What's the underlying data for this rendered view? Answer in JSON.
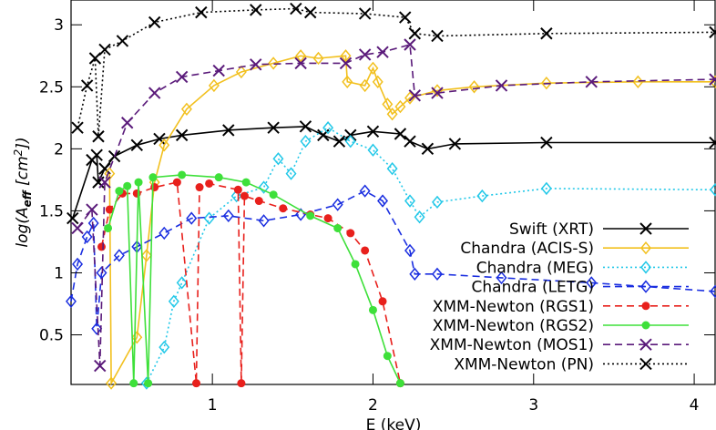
{
  "chart_data": {
    "type": "line",
    "xlabel": "E (keV)",
    "ylabel_parts": [
      "log(A",
      "eff",
      " [cm",
      "2",
      "])"
    ],
    "xlim": [
      0.12,
      4.13
    ],
    "ylim": [
      0.1,
      3.2
    ],
    "xticks": [
      1,
      2,
      3,
      4
    ],
    "yticks": [
      0.5,
      1.0,
      1.5,
      2.0,
      2.5,
      3.0
    ],
    "series": [
      {
        "name": "Swift (XRT)",
        "color": "#000000",
        "dash": "none",
        "marker": "x",
        "x": [
          0.13,
          0.25,
          0.28,
          0.29,
          0.33,
          0.39,
          0.53,
          0.67,
          0.81,
          1.1,
          1.38,
          1.58,
          1.69,
          1.79,
          1.86,
          2.0,
          2.17,
          2.23,
          2.34,
          2.51,
          3.08,
          4.13
        ],
        "values": [
          1.44,
          1.91,
          1.95,
          1.73,
          1.84,
          1.94,
          2.03,
          2.08,
          2.11,
          2.15,
          2.17,
          2.18,
          2.11,
          2.06,
          2.11,
          2.14,
          2.12,
          2.06,
          2.0,
          2.04,
          2.05,
          2.05
        ]
      },
      {
        "name": "Chandra (ACIS-S)",
        "color": "#f2c01e",
        "dash": "none",
        "marker": "diamond",
        "x": [
          0.36,
          0.37,
          0.53,
          0.59,
          0.64,
          0.7,
          0.84,
          1.01,
          1.18,
          1.38,
          1.55,
          1.66,
          1.83,
          1.84,
          1.95,
          2.0,
          2.03,
          2.09,
          2.12,
          2.17,
          2.23,
          2.4,
          2.63,
          3.08,
          3.65,
          4.13
        ],
        "values": [
          1.8,
          0.11,
          0.48,
          1.14,
          1.73,
          2.03,
          2.32,
          2.51,
          2.62,
          2.69,
          2.75,
          2.73,
          2.75,
          2.54,
          2.51,
          2.65,
          2.54,
          2.36,
          2.28,
          2.34,
          2.41,
          2.47,
          2.5,
          2.53,
          2.54,
          2.54
        ]
      },
      {
        "name": "Chandra (MEG)",
        "color": "#22c8e8",
        "dash": "2,3",
        "marker": "diamond",
        "x": [
          0.59,
          0.7,
          0.76,
          0.81,
          0.98,
          1.15,
          1.32,
          1.41,
          1.49,
          1.58,
          1.72,
          1.86,
          2.0,
          2.12,
          2.23,
          2.29,
          2.4,
          2.68,
          3.08,
          4.13
        ],
        "values": [
          0.11,
          0.4,
          0.77,
          0.92,
          1.44,
          1.62,
          1.69,
          1.92,
          1.8,
          2.06,
          2.17,
          2.06,
          1.99,
          1.84,
          1.58,
          1.45,
          1.57,
          1.62,
          1.68,
          1.67
        ]
      },
      {
        "name": "Chandra (LETG)",
        "color": "#1a2ee0",
        "dash": "8,5",
        "marker": "diamond",
        "x": [
          0.12,
          0.16,
          0.22,
          0.26,
          0.28,
          0.31,
          0.42,
          0.53,
          0.7,
          0.87,
          1.1,
          1.32,
          1.55,
          1.78,
          1.95,
          2.06,
          2.23,
          2.26,
          2.4,
          2.8,
          3.36,
          4.13
        ],
        "values": [
          0.77,
          1.07,
          1.29,
          1.4,
          0.55,
          1.0,
          1.14,
          1.21,
          1.32,
          1.44,
          1.46,
          1.42,
          1.47,
          1.55,
          1.66,
          1.58,
          1.18,
          0.99,
          0.99,
          0.96,
          0.92,
          0.85
        ]
      },
      {
        "name": "XMM-Newton (RGS1)",
        "color": "#e8201c",
        "dash": "8,5",
        "marker": "circle",
        "x": [
          0.31,
          0.36,
          0.44,
          0.53,
          0.64,
          0.78,
          0.9,
          0.92,
          0.98,
          1.16,
          1.18,
          1.2,
          1.29,
          1.44,
          1.61,
          1.72,
          1.86,
          1.95,
          2.06,
          2.17
        ],
        "values": [
          1.21,
          1.51,
          1.64,
          1.64,
          1.69,
          1.73,
          0.11,
          1.69,
          1.72,
          1.67,
          0.11,
          1.62,
          1.58,
          1.52,
          1.47,
          1.44,
          1.32,
          1.18,
          0.77,
          0.11
        ]
      },
      {
        "name": "XMM-Newton (RGS2)",
        "color": "#3ee03a",
        "dash": "none",
        "marker": "circle",
        "x": [
          0.35,
          0.42,
          0.47,
          0.51,
          0.54,
          0.6,
          0.63,
          0.81,
          1.04,
          1.21,
          1.38,
          1.61,
          1.78,
          1.89,
          2.0,
          2.09,
          2.17
        ],
        "values": [
          1.36,
          1.66,
          1.7,
          0.11,
          1.73,
          0.11,
          1.77,
          1.79,
          1.77,
          1.73,
          1.63,
          1.46,
          1.36,
          1.07,
          0.7,
          0.33,
          0.11
        ]
      },
      {
        "name": "XMM-Newton (MOS1)",
        "color": "#5a1a7a",
        "dash": "8,5",
        "marker": "x",
        "x": [
          0.16,
          0.25,
          0.3,
          0.33,
          0.47,
          0.64,
          0.81,
          1.04,
          1.27,
          1.55,
          1.83,
          1.95,
          2.06,
          2.23,
          2.26,
          2.4,
          2.8,
          3.36,
          4.13
        ],
        "values": [
          1.36,
          1.51,
          0.25,
          1.73,
          2.21,
          2.45,
          2.58,
          2.63,
          2.68,
          2.69,
          2.69,
          2.76,
          2.78,
          2.84,
          2.43,
          2.45,
          2.51,
          2.54,
          2.56
        ]
      },
      {
        "name": "XMM-Newton (PN)",
        "color": "#000000",
        "dash": "2,3",
        "marker": "x",
        "x": [
          0.16,
          0.22,
          0.27,
          0.29,
          0.33,
          0.44,
          0.64,
          0.93,
          1.27,
          1.52,
          1.61,
          1.95,
          2.2,
          2.26,
          2.4,
          3.08,
          4.13
        ],
        "values": [
          2.17,
          2.51,
          2.73,
          2.1,
          2.8,
          2.87,
          3.02,
          3.1,
          3.12,
          3.13,
          3.1,
          3.09,
          3.06,
          2.93,
          2.91,
          2.93,
          2.94
        ]
      }
    ]
  }
}
